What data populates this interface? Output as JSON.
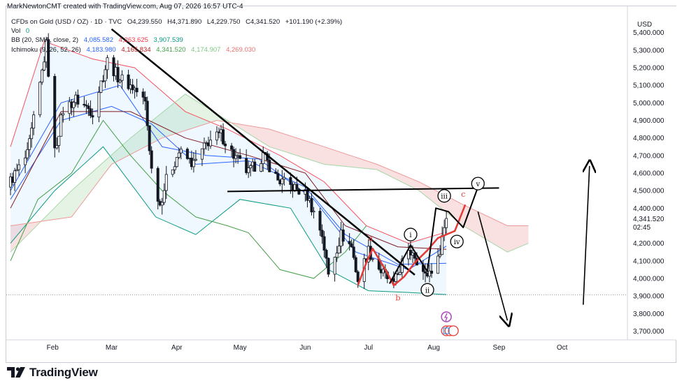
{
  "header": {
    "attribution": "MarkNewtonCMT created with TradingView.com, Aug 07, 2026 16:57 UTC-4"
  },
  "legend": {
    "symbol": "CFDs on Gold (USD / OZ) · 1D · TVC",
    "ohlc": {
      "o": "O4,239.550",
      "h": "H4,371.890",
      "l": "L4,229.750",
      "c": "C4,341.520",
      "chg": "+101.190 (+2.39%)"
    },
    "vol_label": "Vol",
    "vol_value": "0",
    "bb_label": "BB (20, SMA, close, 2)",
    "bb_values": [
      "4,085.582",
      "4,263.625",
      "3,907.539"
    ],
    "ichimoku_label": "Ichimoku (9, 26, 52, 26)",
    "ichimoku_values": [
      "4,183.980",
      "4,165.834",
      "4,341.520",
      "4,174.907",
      "4,269.030"
    ]
  },
  "price_axis": {
    "currency": "USD",
    "last_price": "4,341.520",
    "countdown": "02:45"
  },
  "logo": {
    "text": "TradingView"
  },
  "colors": {
    "up": "#26a69a",
    "down": "#ef5350",
    "candle_fill_down": "#131722",
    "bb_basis": "#2962ff",
    "bb_band": "#089981",
    "ichi_conv": "#2962ff",
    "ichi_base": "#801922",
    "ichi_lag": "#43a047",
    "ichi_lead_a": "#a5d6a7",
    "ichi_lead_b": "#ef9a9a",
    "wave_red": "#e53935",
    "annot": "#000000"
  },
  "chart_data": {
    "type": "candlestick",
    "symbol": "CFDs on Gold (USD / OZ)",
    "timeframe": "1D",
    "x_tick_labels": [
      "Feb",
      "Mar",
      "Apr",
      "May",
      "Jun",
      "Jul",
      "Aug",
      "Sep",
      "Oct"
    ],
    "y_tick_labels": [
      "5,400.000",
      "5,300.000",
      "5,200.000",
      "5,100.000",
      "5,000.000",
      "4,900.000",
      "4,800.000",
      "4,700.000",
      "4,600.000",
      "4,500.000",
      "4,400.000",
      "4,300.000",
      "4,200.000",
      "4,100.000",
      "4,000.000",
      "3,900.000",
      "3,800.000",
      "3,700.000"
    ],
    "y_ticks": [
      5400,
      5300,
      5200,
      5100,
      5000,
      4900,
      4800,
      4700,
      4600,
      4500,
      4400,
      4300,
      4200,
      4100,
      4000,
      3900,
      3800,
      3700
    ],
    "ylim": [
      3650,
      5550
    ],
    "date_range": [
      "2026-01-10",
      "2026-11-01"
    ],
    "month_starts": [
      "2026-02-01",
      "2026-03-01",
      "2026-04-01",
      "2026-05-01",
      "2026-06-01",
      "2026-07-01",
      "2026-08-01",
      "2026-09-01",
      "2026-10-01"
    ],
    "last_close": 4341.52,
    "close_path": [
      [
        "2026-01-10",
        4520
      ],
      [
        "2026-01-20",
        4700
      ],
      [
        "2026-01-26",
        5100
      ],
      [
        "2026-01-29",
        5330
      ],
      [
        "2026-02-02",
        4720
      ],
      [
        "2026-02-06",
        4960
      ],
      [
        "2026-02-12",
        5020
      ],
      [
        "2026-02-20",
        4950
      ],
      [
        "2026-02-27",
        5240
      ],
      [
        "2026-03-04",
        5150
      ],
      [
        "2026-03-12",
        5080
      ],
      [
        "2026-03-17",
        5000
      ],
      [
        "2026-03-20",
        4620
      ],
      [
        "2026-03-24",
        4420
      ],
      [
        "2026-03-27",
        4560
      ],
      [
        "2026-04-02",
        4720
      ],
      [
        "2026-04-09",
        4650
      ],
      [
        "2026-04-16",
        4780
      ],
      [
        "2026-04-22",
        4820
      ],
      [
        "2026-04-28",
        4700
      ],
      [
        "2026-05-05",
        4600
      ],
      [
        "2026-05-12",
        4700
      ],
      [
        "2026-05-19",
        4560
      ],
      [
        "2026-05-26",
        4520
      ],
      [
        "2026-06-02",
        4470
      ],
      [
        "2026-06-09",
        4250
      ],
      [
        "2026-06-12",
        4020
      ],
      [
        "2026-06-18",
        4250
      ],
      [
        "2026-06-23",
        4180
      ],
      [
        "2026-06-26",
        3990
      ],
      [
        "2026-07-01",
        4160
      ],
      [
        "2026-07-07",
        4040
      ],
      [
        "2026-07-13",
        3960
      ],
      [
        "2026-07-17",
        4090
      ],
      [
        "2026-07-22",
        4160
      ],
      [
        "2026-07-28",
        4010
      ],
      [
        "2026-08-03",
        4100
      ],
      [
        "2026-08-05",
        4240
      ],
      [
        "2026-08-07",
        4341.52
      ]
    ],
    "bb_basis": [
      [
        "2026-01-12",
        4450
      ],
      [
        "2026-02-05",
        4900
      ],
      [
        "2026-03-01",
        4980
      ],
      [
        "2026-03-20",
        4880
      ],
      [
        "2026-04-10",
        4650
      ],
      [
        "2026-05-05",
        4670
      ],
      [
        "2026-06-01",
        4520
      ],
      [
        "2026-06-20",
        4250
      ],
      [
        "2026-07-15",
        4080
      ],
      [
        "2026-08-07",
        4086
      ]
    ],
    "bb_upper": [
      [
        "2026-01-12",
        4750
      ],
      [
        "2026-01-28",
        5350
      ],
      [
        "2026-02-20",
        5250
      ],
      [
        "2026-03-12",
        5200
      ],
      [
        "2026-04-05",
        4950
      ],
      [
        "2026-04-25",
        4850
      ],
      [
        "2026-05-20",
        4700
      ],
      [
        "2026-06-10",
        4550
      ],
      [
        "2026-06-30",
        4300
      ],
      [
        "2026-07-20",
        4200
      ],
      [
        "2026-08-07",
        4264
      ]
    ],
    "bb_lower": [
      [
        "2026-01-12",
        4200
      ],
      [
        "2026-02-02",
        4500
      ],
      [
        "2026-02-25",
        4750
      ],
      [
        "2026-03-22",
        4350
      ],
      [
        "2026-04-10",
        4250
      ],
      [
        "2026-05-01",
        4450
      ],
      [
        "2026-05-25",
        4400
      ],
      [
        "2026-06-12",
        4050
      ],
      [
        "2026-07-01",
        3930
      ],
      [
        "2026-07-20",
        3920
      ],
      [
        "2026-08-07",
        3908
      ]
    ],
    "ichi_conversion": [
      [
        "2026-01-12",
        4500
      ],
      [
        "2026-02-05",
        5000
      ],
      [
        "2026-03-05",
        5100
      ],
      [
        "2026-03-25",
        4750
      ],
      [
        "2026-04-15",
        4700
      ],
      [
        "2026-05-10",
        4680
      ],
      [
        "2026-06-05",
        4450
      ],
      [
        "2026-06-25",
        4150
      ],
      [
        "2026-07-20",
        4050
      ],
      [
        "2026-08-07",
        4184
      ]
    ],
    "ichi_base": [
      [
        "2026-01-12",
        4400
      ],
      [
        "2026-02-05",
        4950
      ],
      [
        "2026-03-10",
        4950
      ],
      [
        "2026-04-05",
        4800
      ],
      [
        "2026-05-05",
        4700
      ],
      [
        "2026-06-01",
        4600
      ],
      [
        "2026-06-20",
        4300
      ],
      [
        "2026-07-15",
        4180
      ],
      [
        "2026-08-07",
        4166
      ]
    ],
    "ichi_lagging": [
      [
        "2026-01-12",
        4100
      ],
      [
        "2026-01-25",
        4450
      ],
      [
        "2026-02-10",
        4600
      ],
      [
        "2026-02-25",
        4900
      ],
      [
        "2026-03-10",
        4700
      ],
      [
        "2026-03-25",
        4500
      ],
      [
        "2026-04-10",
        4350
      ],
      [
        "2026-04-25",
        4300
      ],
      [
        "2026-05-05",
        4260
      ],
      [
        "2026-05-20",
        4050
      ],
      [
        "2026-06-05",
        4000
      ],
      [
        "2026-06-20",
        4150
      ],
      [
        "2026-06-30",
        4300
      ]
    ],
    "ichi_lead_a": [
      [
        "2026-01-12",
        4150
      ],
      [
        "2026-02-10",
        4500
      ],
      [
        "2026-03-10",
        4800
      ],
      [
        "2026-04-05",
        5050
      ],
      [
        "2026-04-25",
        4900
      ],
      [
        "2026-05-15",
        4750
      ],
      [
        "2026-06-10",
        4650
      ],
      [
        "2026-07-05",
        4620
      ],
      [
        "2026-07-25",
        4500
      ],
      [
        "2026-08-15",
        4300
      ],
      [
        "2026-09-05",
        4150
      ],
      [
        "2026-09-15",
        4200
      ]
    ],
    "ichi_lead_b": [
      [
        "2026-01-12",
        4300
      ],
      [
        "2026-02-10",
        4350
      ],
      [
        "2026-03-01",
        4650
      ],
      [
        "2026-03-25",
        4800
      ],
      [
        "2026-04-20",
        4900
      ],
      [
        "2026-05-15",
        4850
      ],
      [
        "2026-06-10",
        4750
      ],
      [
        "2026-07-05",
        4650
      ],
      [
        "2026-07-25",
        4550
      ],
      [
        "2026-08-15",
        4420
      ],
      [
        "2026-09-05",
        4300
      ],
      [
        "2026-09-15",
        4300
      ]
    ],
    "annotations": {
      "trendline": [
        [
          "2026-03-01",
          5420
        ],
        [
          "2026-07-23",
          4020
        ]
      ],
      "horizontal": [
        [
          "2026-04-25",
          4495
        ],
        [
          "2026-09-01",
          4515
        ]
      ],
      "wave_red": [
        [
          "2026-06-26",
          3960
        ],
        [
          "2026-06-30",
          4090
        ],
        [
          "2026-07-03",
          4170
        ],
        [
          "2026-07-10",
          4030
        ],
        [
          "2026-07-13",
          3960
        ],
        [
          "2026-07-18",
          4010
        ],
        [
          "2026-07-23",
          4090
        ],
        [
          "2026-07-29",
          4160
        ],
        [
          "2026-08-03",
          4230
        ],
        [
          "2026-08-11",
          4270
        ],
        [
          "2026-08-16",
          4420
        ]
      ],
      "wave_black": [
        [
          "2026-07-11",
          3970
        ],
        [
          "2026-07-21",
          4190
        ],
        [
          "2026-07-29",
          4040
        ],
        [
          "2026-08-02",
          4400
        ],
        [
          "2026-08-08",
          4380
        ],
        [
          "2026-08-15",
          4290
        ],
        [
          "2026-08-22",
          4520
        ]
      ],
      "arrow_down": [
        [
          "2026-08-22",
          4380
        ],
        [
          "2026-09-05",
          3760
        ]
      ],
      "arrow_up": [
        [
          "2026-10-11",
          3850
        ],
        [
          "2026-10-14",
          4640
        ]
      ],
      "wave_labels": [
        {
          "text": "i",
          "date": "2026-07-21",
          "value": 4250,
          "circled": true
        },
        {
          "text": "ii",
          "date": "2026-07-29",
          "value": 3935,
          "circled": true
        },
        {
          "text": "iii",
          "date": "2026-08-06",
          "value": 4470,
          "circled": true
        },
        {
          "text": "iv",
          "date": "2026-08-12",
          "value": 4210,
          "circled": true
        },
        {
          "text": "v",
          "date": "2026-08-22",
          "value": 4540,
          "circled": true
        },
        {
          "text": "a",
          "date": "2026-07-02",
          "value": 4230,
          "circled": false
        },
        {
          "text": "b",
          "date": "2026-07-15",
          "value": 3890,
          "circled": false
        },
        {
          "text": "c",
          "date": "2026-08-15",
          "value": 4480,
          "circled": false
        }
      ]
    }
  }
}
